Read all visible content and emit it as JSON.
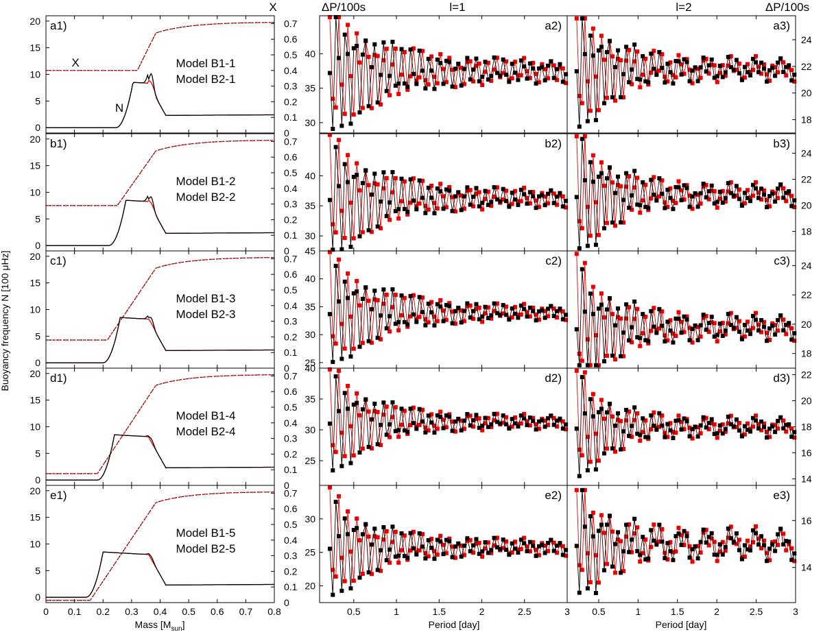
{
  "figure": {
    "left_ylabel": "Buoyancy frequency N [100 μHz]",
    "left_xlabel": "Mass [M",
    "left_xlabel_sub": "sun",
    "left_xlabel_end": "]",
    "mid_xlabel": "Period [day]",
    "right_xlabel": "Period [day]",
    "x_axis_top_label": "X",
    "dp_label_mid": "ΔP/100s",
    "dp_label_right": "ΔP/100s",
    "l1_label": "l=1",
    "l2_label": "l=2",
    "curve_label_X": "X",
    "curve_label_N": "N"
  },
  "colors": {
    "B1": "#ee0000",
    "B2": "#000000",
    "axis": "#000000"
  },
  "chart_data": [
    {
      "type": "line",
      "column": "left",
      "xlim": [
        0,
        0.8
      ],
      "xticks": [
        "0",
        "0.1",
        "0.2",
        "0.3",
        "0.4",
        "0.5",
        "0.6",
        "0.7",
        "0.8"
      ],
      "ylim": [
        -1,
        21
      ],
      "yticks": [
        "0",
        "5",
        "10",
        "15",
        "20"
      ],
      "y2lim": [
        0,
        0.75
      ],
      "y2ticks": [
        "0",
        "0.1",
        "0.2",
        "0.3",
        "0.4",
        "0.5",
        "0.6",
        "0.7"
      ],
      "panels": [
        {
          "id": "a1)",
          "legend_red": "Model B1-1",
          "legend_black": "Model B2-1",
          "X_core": 0.4,
          "X_rise": [
            0.32,
            0.385
          ],
          "N_red_peak": 9.3,
          "N_black_peak": 11.0,
          "N_onset": 0.245,
          "N_tail": 2.3
        },
        {
          "id": "b1)",
          "legend_red": "Model B1-2",
          "legend_black": "Model B2-2",
          "X_core": 0.29,
          "X_rise": [
            0.25,
            0.385
          ],
          "N_red_peak": 8.8,
          "N_black_peak": 10.0,
          "N_onset": 0.22,
          "N_tail": 2.3
        },
        {
          "id": "c1)",
          "legend_red": "Model B1-3",
          "legend_black": "Model B2-3",
          "X_core": 0.18,
          "X_rise": [
            0.215,
            0.385
          ],
          "N_red_peak": 8.3,
          "N_black_peak": 9.3,
          "N_onset": 0.2,
          "N_tail": 2.3
        },
        {
          "id": "d1)",
          "legend_red": "Model B1-4",
          "legend_black": "Model B2-4",
          "X_core": 0.075,
          "X_rise": [
            0.18,
            0.385
          ],
          "N_red_peak": 8.0,
          "N_black_peak": 8.6,
          "N_onset": 0.18,
          "N_tail": 2.3
        },
        {
          "id": "e1)",
          "legend_red": "Model B1-5",
          "legend_black": "Model B2-5",
          "X_core": 0.015,
          "X_rise": [
            0.155,
            0.385
          ],
          "N_red_peak": 8.0,
          "N_black_peak": 8.5,
          "N_onset": 0.14,
          "N_tail": 2.3
        }
      ]
    },
    {
      "type": "scatter",
      "column": "middle",
      "degree": "l=1",
      "xlim": [
        0.1,
        3.0
      ],
      "xticks": [
        "0.5",
        "1",
        "1.5",
        "2",
        "2.5",
        "3"
      ],
      "panels": [
        {
          "id": "a2)",
          "ylim": [
            28.5,
            45.5
          ],
          "yticks": [
            "30",
            "35",
            "40"
          ],
          "mean": 37.5,
          "amp": 9,
          "decay": 0.6,
          "floor": 1.3
        },
        {
          "id": "b2)",
          "ylim": [
            27.5,
            47.0
          ],
          "yticks": [
            "30",
            "35",
            "40"
          ],
          "mean": 36.3,
          "amp": 10,
          "decay": 0.6,
          "floor": 1.1
        },
        {
          "id": "c2)",
          "ylim": [
            24.0,
            45.0
          ],
          "yticks": [
            "25",
            "30",
            "35",
            "40",
            "45"
          ],
          "mean": 34.0,
          "amp": 10,
          "decay": 0.6,
          "floor": 0.9
        },
        {
          "id": "d2)",
          "ylim": [
            21.0,
            40.0
          ],
          "yticks": [
            "25",
            "30",
            "35",
            "40"
          ],
          "mean": 31.3,
          "amp": 9,
          "decay": 0.5,
          "floor": 0.8
        },
        {
          "id": "e2)",
          "ylim": [
            17.5,
            35.0
          ],
          "yticks": [
            "20",
            "25",
            "30"
          ],
          "mean": 25.8,
          "amp": 8,
          "decay": 0.5,
          "floor": 0.9
        }
      ]
    },
    {
      "type": "scatter",
      "column": "right",
      "degree": "l=2",
      "xlim": [
        0.1,
        3.0
      ],
      "xticks": [
        "0.5",
        "1",
        "1.5",
        "2",
        "2.5",
        "3"
      ],
      "panels": [
        {
          "id": "a3)",
          "ylim": [
            17.0,
            25.8
          ],
          "yticks": [
            "18",
            "20",
            "22",
            "24"
          ],
          "mean": 21.8,
          "amp": 5,
          "decay": 0.45,
          "floor": 0.55
        },
        {
          "id": "b3)",
          "ylim": [
            16.5,
            25.5
          ],
          "yticks": [
            "18",
            "20",
            "22",
            "24"
          ],
          "mean": 20.8,
          "amp": 5,
          "decay": 0.45,
          "floor": 0.55
        },
        {
          "id": "c3)",
          "ylim": [
            17.0,
            25.0
          ],
          "yticks": [
            "18",
            "20",
            "22",
            "24"
          ],
          "mean": 19.8,
          "amp": 4.5,
          "decay": 0.45,
          "floor": 0.55
        },
        {
          "id": "d3)",
          "ylim": [
            13.5,
            22.5
          ],
          "yticks": [
            "14",
            "16",
            "18",
            "20",
            "22"
          ],
          "mean": 18.0,
          "amp": 4.5,
          "decay": 0.4,
          "floor": 0.45
        },
        {
          "id": "e3)",
          "ylim": [
            12.5,
            17.5
          ],
          "yticks": [
            "14",
            "16"
          ],
          "mean": 15.0,
          "amp": 2.5,
          "decay": 0.4,
          "floor": 0.35
        }
      ]
    }
  ]
}
